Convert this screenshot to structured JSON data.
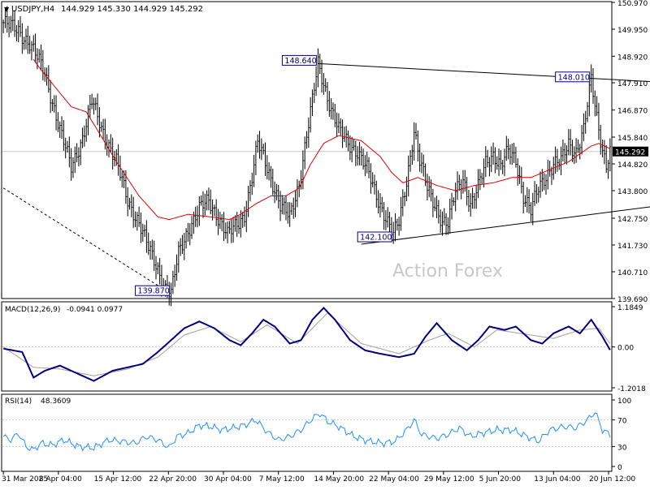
{
  "header": {
    "symbol_line": "USDJPY,H4",
    "ohlc": "144.929 145.330 144.929 145.292"
  },
  "watermark": "Action Forex",
  "colors": {
    "grid": "#c8c8c8",
    "candles": "#000000",
    "ma": "#e00000",
    "macd_main": "#000080",
    "macd_signal": "#a0a0a0",
    "rsi": "#1e90ff",
    "price_tag_bg": "#000000"
  },
  "chart_data": [
    {
      "type": "candlestick",
      "name": "USDJPY,H4",
      "ylim": [
        139.69,
        150.97
      ],
      "yticks": [
        "150.970",
        "149.950",
        "148.920",
        "147.910",
        "146.870",
        "145.840",
        "144.820",
        "143.800",
        "142.750",
        "141.730",
        "140.710",
        "139.690"
      ],
      "current_price": "145.292",
      "xtick_labels": [
        "31 Mar 2025",
        "8 Apr 04:00",
        "15 Apr 12:00",
        "22 Apr 20:00",
        "30 Apr 04:00",
        "7 May 12:00",
        "14 May 20:00",
        "22 May 04:00",
        "29 May 12:00",
        "5 Jun 20:00",
        "13 Jun 04:00",
        "20 Jun 12:00"
      ],
      "price_path": [
        [
          0,
          150.2
        ],
        [
          8,
          149.9
        ],
        [
          14,
          149.4
        ],
        [
          22,
          148.3
        ],
        [
          30,
          146.1
        ],
        [
          36,
          144.7
        ],
        [
          42,
          145.8
        ],
        [
          47,
          147.2
        ],
        [
          52,
          146.2
        ],
        [
          60,
          144.9
        ],
        [
          66,
          143.4
        ],
        [
          72,
          142.6
        ],
        [
          77,
          141.6
        ],
        [
          82,
          140.8
        ],
        [
          86,
          140.1
        ],
        [
          89,
          139.87
        ],
        [
          93,
          141.4
        ],
        [
          98,
          142.3
        ],
        [
          104,
          143.1
        ],
        [
          109,
          143.4
        ],
        [
          114,
          142.8
        ],
        [
          119,
          142.1
        ],
        [
          124,
          142.5
        ],
        [
          128,
          142.9
        ],
        [
          132,
          144.3
        ],
        [
          135,
          145.6
        ],
        [
          138,
          145.1
        ],
        [
          142,
          144.3
        ],
        [
          147,
          143.2
        ],
        [
          152,
          142.8
        ],
        [
          157,
          144.1
        ],
        [
          161,
          145.9
        ],
        [
          164,
          147.2
        ],
        [
          167,
          148.64
        ],
        [
          170,
          147.9
        ],
        [
          174,
          146.9
        ],
        [
          178,
          146.1
        ],
        [
          183,
          145.6
        ],
        [
          188,
          145.3
        ],
        [
          193,
          144.6
        ],
        [
          198,
          143.6
        ],
        [
          203,
          142.8
        ],
        [
          207,
          142.1
        ],
        [
          210,
          142.6
        ],
        [
          214,
          144.2
        ],
        [
          218,
          146.1
        ],
        [
          221,
          144.9
        ],
        [
          225,
          143.9
        ],
        [
          229,
          143.3
        ],
        [
          233,
          142.6
        ],
        [
          236,
          142.5
        ],
        [
          240,
          143.8
        ],
        [
          244,
          144.3
        ],
        [
          248,
          143.2
        ],
        [
          252,
          143.9
        ],
        [
          256,
          144.9
        ],
        [
          260,
          145.2
        ],
        [
          264,
          144.7
        ],
        [
          268,
          145.3
        ],
        [
          272,
          145.0
        ],
        [
          276,
          143.6
        ],
        [
          280,
          143.0
        ],
        [
          284,
          143.9
        ],
        [
          288,
          144.4
        ],
        [
          292,
          144.8
        ],
        [
          296,
          144.9
        ],
        [
          300,
          145.6
        ],
        [
          304,
          145.3
        ],
        [
          308,
          146.1
        ],
        [
          312,
          148.01
        ],
        [
          315,
          146.6
        ],
        [
          318,
          145.4
        ],
        [
          320,
          144.8
        ],
        [
          322,
          145.292
        ]
      ],
      "moving_average": {
        "start_index": 16,
        "path": [
          [
            16,
            148.8
          ],
          [
            20,
            148.4
          ],
          [
            28,
            147.7
          ],
          [
            36,
            147.0
          ],
          [
            44,
            146.8
          ],
          [
            50,
            146.1
          ],
          [
            60,
            144.9
          ],
          [
            72,
            143.6
          ],
          [
            82,
            142.8
          ],
          [
            88,
            142.7
          ],
          [
            98,
            142.9
          ],
          [
            110,
            142.8
          ],
          [
            120,
            142.7
          ],
          [
            126,
            142.9
          ],
          [
            134,
            143.3
          ],
          [
            142,
            143.6
          ],
          [
            150,
            143.6
          ],
          [
            157,
            143.9
          ],
          [
            163,
            144.8
          ],
          [
            170,
            145.6
          ],
          [
            178,
            145.9
          ],
          [
            190,
            145.7
          ],
          [
            200,
            145.1
          ],
          [
            206,
            144.5
          ],
          [
            212,
            144.1
          ],
          [
            220,
            144.3
          ],
          [
            230,
            144.0
          ],
          [
            240,
            143.8
          ],
          [
            250,
            144.0
          ],
          [
            260,
            144.1
          ],
          [
            270,
            144.3
          ],
          [
            280,
            144.3
          ],
          [
            290,
            144.6
          ],
          [
            300,
            144.9
          ],
          [
            306,
            145.2
          ],
          [
            312,
            145.5
          ],
          [
            316,
            145.6
          ],
          [
            322,
            145.4
          ]
        ]
      },
      "annotations": [
        {
          "label": "148.640",
          "index": 167,
          "price": 148.64,
          "box": "left"
        },
        {
          "label": "148.010",
          "index": 312,
          "price": 148.01,
          "box": "left"
        },
        {
          "label": "142.100",
          "index": 207,
          "price": 142.1,
          "box": "left-below"
        },
        {
          "label": "139.870",
          "index": 89,
          "price": 139.87,
          "box": "left"
        }
      ],
      "trendlines": [
        {
          "style": "solid",
          "from": [
            167,
            148.64
          ],
          "to": [
            345,
            147.95
          ]
        },
        {
          "style": "solid",
          "from": [
            190,
            141.76
          ],
          "to": [
            345,
            143.2
          ]
        },
        {
          "style": "dashed",
          "from": [
            0,
            143.9
          ],
          "to": [
            89,
            139.87
          ]
        }
      ]
    },
    {
      "type": "line",
      "name": "MACD(12,26,9)",
      "values_label": "-0.0941 0.0977",
      "yticks": [
        "1.1849",
        "0.00",
        "-1.2018"
      ],
      "ylim": [
        -1.2018,
        1.1849
      ],
      "series": [
        {
          "name": "main",
          "path": [
            [
              0,
              -0.05
            ],
            [
              10,
              -0.15
            ],
            [
              16,
              -0.9
            ],
            [
              22,
              -0.7
            ],
            [
              30,
              -0.55
            ],
            [
              40,
              -0.8
            ],
            [
              48,
              -1.0
            ],
            [
              58,
              -0.7
            ],
            [
              66,
              -0.6
            ],
            [
              74,
              -0.5
            ],
            [
              82,
              -0.15
            ],
            [
              88,
              0.15
            ],
            [
              96,
              0.55
            ],
            [
              104,
              0.75
            ],
            [
              112,
              0.55
            ],
            [
              120,
              0.2
            ],
            [
              126,
              0.05
            ],
            [
              132,
              0.4
            ],
            [
              138,
              0.8
            ],
            [
              144,
              0.6
            ],
            [
              152,
              0.1
            ],
            [
              158,
              0.2
            ],
            [
              164,
              0.8
            ],
            [
              170,
              1.15
            ],
            [
              176,
              0.8
            ],
            [
              184,
              0.2
            ],
            [
              192,
              -0.1
            ],
            [
              200,
              -0.2
            ],
            [
              210,
              -0.3
            ],
            [
              218,
              -0.2
            ],
            [
              224,
              0.3
            ],
            [
              230,
              0.7
            ],
            [
              238,
              0.2
            ],
            [
              246,
              -0.1
            ],
            [
              252,
              0.2
            ],
            [
              258,
              0.6
            ],
            [
              266,
              0.5
            ],
            [
              272,
              0.6
            ],
            [
              280,
              0.2
            ],
            [
              286,
              0.1
            ],
            [
              292,
              0.4
            ],
            [
              300,
              0.6
            ],
            [
              306,
              0.4
            ],
            [
              312,
              0.8
            ],
            [
              318,
              0.3
            ],
            [
              322,
              -0.09
            ]
          ]
        },
        {
          "name": "signal",
          "path": [
            [
              0,
              0.0
            ],
            [
              16,
              -0.6
            ],
            [
              30,
              -0.65
            ],
            [
              48,
              -0.85
            ],
            [
              66,
              -0.65
            ],
            [
              82,
              -0.3
            ],
            [
              96,
              0.35
            ],
            [
              110,
              0.6
            ],
            [
              126,
              0.15
            ],
            [
              140,
              0.65
            ],
            [
              156,
              0.1
            ],
            [
              172,
              1.0
            ],
            [
              190,
              0.1
            ],
            [
              210,
              -0.2
            ],
            [
              226,
              0.2
            ],
            [
              236,
              0.4
            ],
            [
              250,
              0.0
            ],
            [
              262,
              0.5
            ],
            [
              280,
              0.35
            ],
            [
              292,
              0.25
            ],
            [
              306,
              0.5
            ],
            [
              316,
              0.55
            ],
            [
              322,
              0.1
            ]
          ]
        }
      ]
    },
    {
      "type": "line",
      "name": "RSI(14)",
      "values_label": "48.3609",
      "yticks": [
        "100",
        "70",
        "30",
        "0"
      ],
      "ylim": [
        0,
        100
      ],
      "series": [
        {
          "name": "rsi",
          "path": [
            [
              0,
              45
            ],
            [
              4,
              40
            ],
            [
              8,
              50
            ],
            [
              12,
              30
            ],
            [
              16,
              25
            ],
            [
              20,
              35
            ],
            [
              26,
              32
            ],
            [
              32,
              40
            ],
            [
              40,
              30
            ],
            [
              48,
              28
            ],
            [
              56,
              40
            ],
            [
              62,
              38
            ],
            [
              70,
              35
            ],
            [
              76,
              45
            ],
            [
              82,
              40
            ],
            [
              88,
              28
            ],
            [
              92,
              45
            ],
            [
              98,
              50
            ],
            [
              104,
              62
            ],
            [
              110,
              60
            ],
            [
              116,
              55
            ],
            [
              122,
              58
            ],
            [
              128,
              62
            ],
            [
              134,
              70
            ],
            [
              140,
              52
            ],
            [
              146,
              40
            ],
            [
              152,
              45
            ],
            [
              158,
              55
            ],
            [
              164,
              72
            ],
            [
              168,
              80
            ],
            [
              172,
              68
            ],
            [
              178,
              60
            ],
            [
              186,
              45
            ],
            [
              194,
              38
            ],
            [
              202,
              35
            ],
            [
              208,
              38
            ],
            [
              214,
              55
            ],
            [
              218,
              70
            ],
            [
              222,
              48
            ],
            [
              230,
              42
            ],
            [
              236,
              48
            ],
            [
              242,
              58
            ],
            [
              248,
              45
            ],
            [
              254,
              50
            ],
            [
              262,
              55
            ],
            [
              270,
              55
            ],
            [
              278,
              45
            ],
            [
              284,
              38
            ],
            [
              290,
              55
            ],
            [
              298,
              60
            ],
            [
              304,
              58
            ],
            [
              310,
              70
            ],
            [
              314,
              82
            ],
            [
              318,
              55
            ],
            [
              322,
              48
            ]
          ]
        }
      ]
    }
  ]
}
